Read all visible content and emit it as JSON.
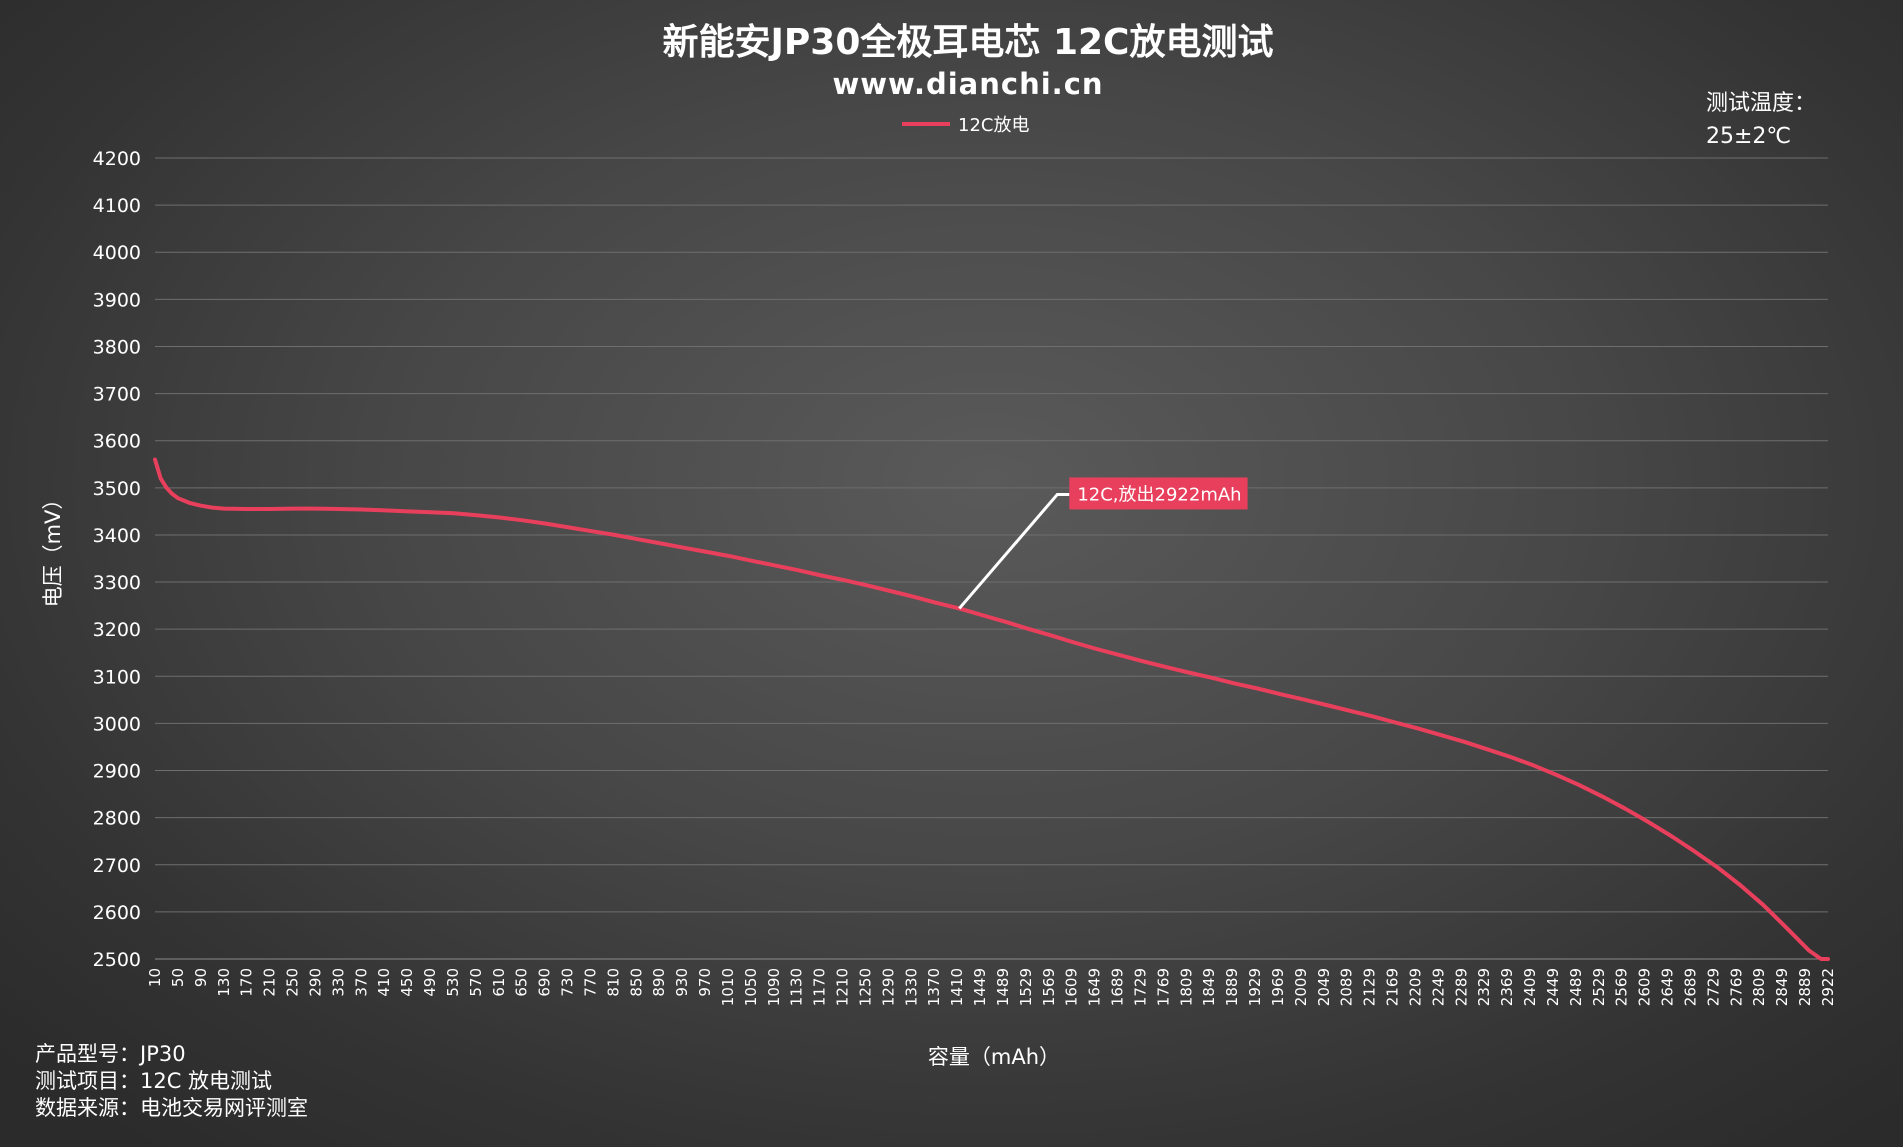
{
  "chart_data": {
    "type": "line",
    "title": "新能安JP30全极耳电芯 12C放电测试",
    "subtitle": "www.dianchi.cn",
    "xlabel": "容量（mAh）",
    "ylabel": "电压（mV）",
    "ylim": [
      2500,
      4200
    ],
    "y_ticks": [
      "4200",
      "4100",
      "4000",
      "3900",
      "3800",
      "3700",
      "3600",
      "3500",
      "3400",
      "3300",
      "3200",
      "3100",
      "3000",
      "2900",
      "2800",
      "2700",
      "2600",
      "2500"
    ],
    "x_tick_labels": [
      "10",
      "50",
      "90",
      "130",
      "170",
      "210",
      "250",
      "290",
      "330",
      "370",
      "410",
      "450",
      "490",
      "530",
      "570",
      "610",
      "650",
      "690",
      "730",
      "770",
      "810",
      "850",
      "890",
      "930",
      "970",
      "1010",
      "1050",
      "1090",
      "1130",
      "1170",
      "1210",
      "1250",
      "1290",
      "1330",
      "1370",
      "1410",
      "1449",
      "1489",
      "1529",
      "1569",
      "1609",
      "1649",
      "1689",
      "1729",
      "1769",
      "1809",
      "1849",
      "1889",
      "1929",
      "1969",
      "2009",
      "2049",
      "2089",
      "2129",
      "2169",
      "2209",
      "2249",
      "2289",
      "2329",
      "2369",
      "2409",
      "2449",
      "2489",
      "2529",
      "2569",
      "2609",
      "2649",
      "2689",
      "2729",
      "2769",
      "2809",
      "2849",
      "2889",
      "2922"
    ],
    "grid": true,
    "legend_position": "top-center",
    "series": [
      {
        "name": "12C放电",
        "color": "#e8405c",
        "x": [
          10,
          20,
          30,
          40,
          50,
          70,
          90,
          110,
          130,
          170,
          210,
          250,
          290,
          330,
          370,
          410,
          450,
          490,
          530,
          570,
          610,
          650,
          690,
          730,
          770,
          810,
          850,
          890,
          930,
          970,
          1010,
          1050,
          1090,
          1130,
          1170,
          1210,
          1250,
          1290,
          1330,
          1370,
          1410,
          1449,
          1489,
          1529,
          1569,
          1609,
          1649,
          1689,
          1729,
          1769,
          1809,
          1849,
          1889,
          1929,
          1969,
          2009,
          2049,
          2089,
          2129,
          2169,
          2209,
          2249,
          2289,
          2329,
          2369,
          2409,
          2449,
          2489,
          2529,
          2569,
          2609,
          2649,
          2689,
          2729,
          2769,
          2809,
          2849,
          2889,
          2910,
          2922
        ],
        "y": [
          3560,
          3520,
          3500,
          3487,
          3478,
          3468,
          3462,
          3458,
          3456,
          3455,
          3455,
          3456,
          3456,
          3455,
          3454,
          3452,
          3450,
          3448,
          3446,
          3442,
          3437,
          3431,
          3424,
          3416,
          3408,
          3400,
          3391,
          3382,
          3373,
          3364,
          3355,
          3345,
          3335,
          3325,
          3314,
          3304,
          3293,
          3281,
          3269,
          3256,
          3244,
          3230,
          3216,
          3201,
          3187,
          3172,
          3158,
          3145,
          3132,
          3120,
          3108,
          3097,
          3085,
          3074,
          3062,
          3051,
          3039,
          3027,
          3015,
          3002,
          2989,
          2975,
          2961,
          2945,
          2929,
          2911,
          2891,
          2869,
          2845,
          2819,
          2791,
          2761,
          2729,
          2695,
          2657,
          2615,
          2567,
          2518,
          2500,
          2500
        ]
      }
    ],
    "annotation": {
      "text": "12C,放出2922mAh",
      "x": 1410,
      "y": 3244
    }
  },
  "notes": {
    "temp_label": "测试温度：",
    "temp_value": "25±2℃"
  },
  "info": {
    "model": "产品型号：JP30",
    "item": "测试项目：12C 放电测试",
    "source": "数据来源：电池交易网评测室"
  }
}
